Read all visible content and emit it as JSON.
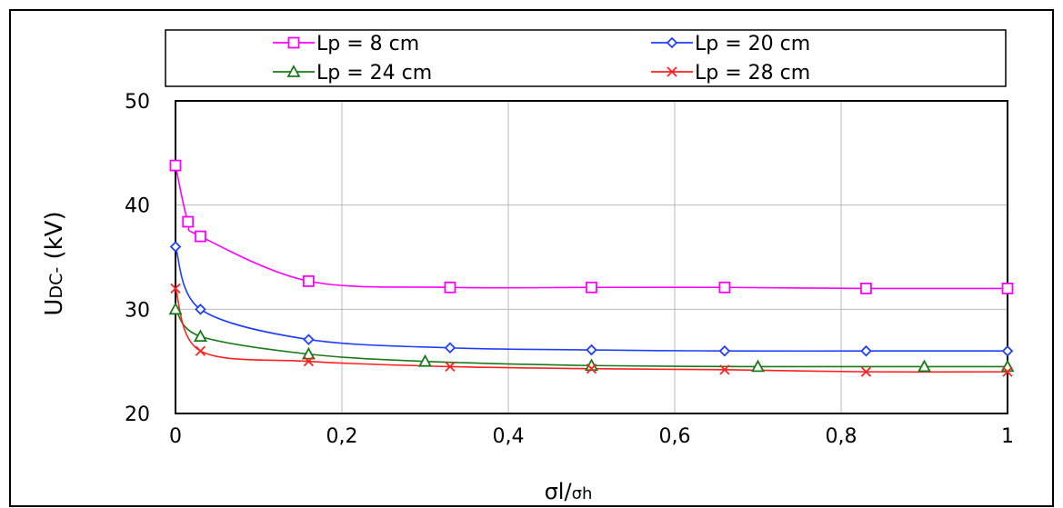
{
  "chart_data": {
    "type": "line",
    "xlabel_main": "σl",
    "xlabel_sep": "/",
    "xlabel_sub": "σh",
    "ylabel_main": "U",
    "ylabel_sub": "DC-",
    "ylabel_unit": " (kV)",
    "xlim": [
      0,
      1
    ],
    "ylim": [
      20,
      50
    ],
    "xticks": [
      0,
      0.2,
      0.4,
      0.6,
      0.8,
      1
    ],
    "xtick_labels": [
      "0",
      "0,2",
      "0,4",
      "0,6",
      "0,8",
      "1"
    ],
    "yticks": [
      20,
      30,
      40,
      50
    ],
    "ytick_labels": [
      "20",
      "30",
      "40",
      "50"
    ],
    "grid": true,
    "legend_position": "top",
    "series": [
      {
        "name": "Lp = 8 cm",
        "color": "#ff00ff",
        "marker": "square",
        "x": [
          0,
          0.015,
          0.03,
          0.16,
          0.33,
          0.5,
          0.66,
          0.83,
          1
        ],
        "y": [
          43.8,
          38.4,
          37,
          32.7,
          32.1,
          32.1,
          32.1,
          32.0,
          32.0
        ]
      },
      {
        "name": "Lp = 20 cm",
        "color": "#1f3fff",
        "marker": "diamond",
        "x": [
          0,
          0.03,
          0.16,
          0.33,
          0.5,
          0.66,
          0.83,
          1
        ],
        "y": [
          36,
          30,
          27.1,
          26.3,
          26.1,
          26,
          26,
          26
        ]
      },
      {
        "name": "Lp = 24 cm",
        "color": "#1a7a1a",
        "marker": "triangle",
        "x": [
          0,
          0.03,
          0.16,
          0.3,
          0.5,
          0.7,
          0.9,
          1
        ],
        "y": [
          30,
          27.4,
          25.7,
          25,
          24.6,
          24.5,
          24.5,
          24.5
        ]
      },
      {
        "name": "Lp = 28 cm",
        "color": "#ff2020",
        "marker": "x",
        "x": [
          0,
          0.03,
          0.16,
          0.33,
          0.5,
          0.66,
          0.83,
          1
        ],
        "y": [
          32,
          26,
          25,
          24.5,
          24.3,
          24.2,
          24,
          24
        ]
      }
    ]
  }
}
